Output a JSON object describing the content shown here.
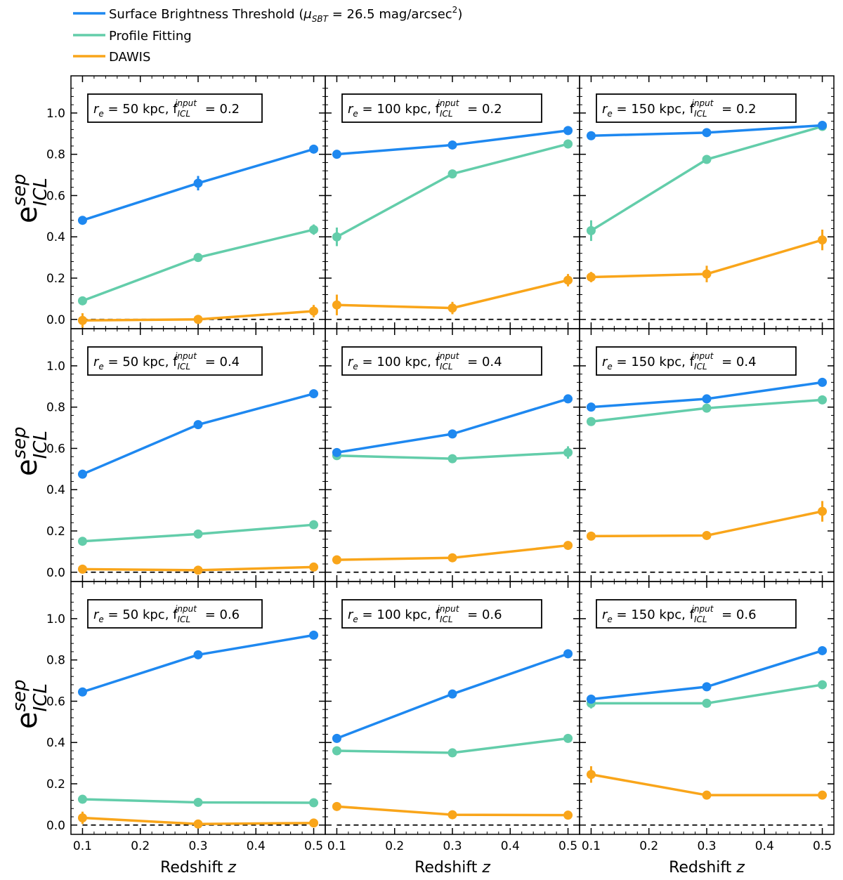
{
  "legend": [
    {
      "label_prefix": "Surface Brightness Threshold (",
      "label_mu": "μ",
      "label_sub": "SBT",
      "label_mid": " = 26.5 mag/arcsec",
      "label_sup": "2",
      "label_suffix": ")",
      "color": "#1e88f0"
    },
    {
      "label": "Profile Fitting",
      "color": "#63cdaa"
    },
    {
      "label": "DAWIS",
      "color": "#f9a51a"
    }
  ],
  "axes": {
    "xlabel": "Redshift z",
    "xlabel_text": "Redshift ",
    "xlabel_var": "z",
    "ylabel_main": "e",
    "ylabel_sup": "sep",
    "ylabel_sub": "ICL",
    "xlim": [
      0.08,
      0.52
    ],
    "ylim": [
      -0.045,
      1.18
    ],
    "xticks": [
      0.1,
      0.2,
      0.3,
      0.4,
      0.5
    ],
    "xtick_labels": [
      "0.1",
      "0.2",
      "0.3",
      "0.4",
      "0.5"
    ],
    "yticks": [
      0.0,
      0.2,
      0.4,
      0.6,
      0.8,
      1.0
    ],
    "ytick_labels": [
      "0.0",
      "0.2",
      "0.4",
      "0.6",
      "0.8",
      "1.0"
    ],
    "reference_line": 0.0
  },
  "chart_data": {
    "type": "line",
    "x": [
      0.1,
      0.3,
      0.5
    ],
    "series_names": [
      "Surface Brightness Threshold",
      "Profile Fitting",
      "DAWIS"
    ],
    "panels": [
      {
        "re_label": "r",
        "re_sub": "e",
        "re_text": " = 50 kpc, f",
        "f_sup": "input",
        "f_sub": "ICL",
        "f_val": " = 0.2",
        "re": 50,
        "f_input": 0.2,
        "series": [
          {
            "name": "Surface Brightness Threshold",
            "y": [
              0.48,
              0.66,
              0.825
            ],
            "err": [
              0.02,
              0.035,
              0.012
            ]
          },
          {
            "name": "Profile Fitting",
            "y": [
              0.09,
              0.3,
              0.435
            ],
            "err": [
              0.012,
              0.012,
              0.025
            ]
          },
          {
            "name": "DAWIS",
            "y": [
              -0.005,
              0.0,
              0.04
            ],
            "err": [
              0.035,
              0.012,
              0.03
            ]
          }
        ]
      },
      {
        "re_label": "r",
        "re_sub": "e",
        "re_text": " = 100 kpc, f",
        "f_sup": "input",
        "f_sub": "ICL",
        "f_val": " = 0.2",
        "re": 100,
        "f_input": 0.2,
        "series": [
          {
            "name": "Surface Brightness Threshold",
            "y": [
              0.8,
              0.845,
              0.915
            ],
            "err": [
              0.012,
              0.012,
              0.012
            ]
          },
          {
            "name": "Profile Fitting",
            "y": [
              0.4,
              0.705,
              0.85
            ],
            "err": [
              0.045,
              0.012,
              0.012
            ]
          },
          {
            "name": "DAWIS",
            "y": [
              0.07,
              0.055,
              0.19
            ],
            "err": [
              0.05,
              0.03,
              0.03
            ]
          }
        ]
      },
      {
        "re_label": "r",
        "re_sub": "e",
        "re_text": " = 150 kpc, f",
        "f_sup": "input",
        "f_sub": "ICL",
        "f_val": " = 0.2",
        "re": 150,
        "f_input": 0.2,
        "series": [
          {
            "name": "Surface Brightness Threshold",
            "y": [
              0.89,
              0.905,
              0.94
            ],
            "err": [
              0.012,
              0.012,
              0.012
            ]
          },
          {
            "name": "Profile Fitting",
            "y": [
              0.43,
              0.775,
              0.935
            ],
            "err": [
              0.05,
              0.012,
              0.012
            ]
          },
          {
            "name": "DAWIS",
            "y": [
              0.205,
              0.22,
              0.385
            ],
            "err": [
              0.025,
              0.04,
              0.05
            ]
          }
        ]
      },
      {
        "re_label": "r",
        "re_sub": "e",
        "re_text": " = 50 kpc, f",
        "f_sup": "input",
        "f_sub": "ICL",
        "f_val": " = 0.4",
        "re": 50,
        "f_input": 0.4,
        "series": [
          {
            "name": "Surface Brightness Threshold",
            "y": [
              0.475,
              0.715,
              0.865
            ],
            "err": [
              0.012,
              0.015,
              0.012
            ]
          },
          {
            "name": "Profile Fitting",
            "y": [
              0.15,
              0.185,
              0.23
            ],
            "err": [
              0.012,
              0.012,
              0.012
            ]
          },
          {
            "name": "DAWIS",
            "y": [
              0.015,
              0.01,
              0.025
            ],
            "err": [
              0.012,
              0.012,
              0.012
            ]
          }
        ]
      },
      {
        "re_label": "r",
        "re_sub": "e",
        "re_text": " = 100 kpc, f",
        "f_sup": "input",
        "f_sub": "ICL",
        "f_val": " = 0.4",
        "re": 100,
        "f_input": 0.4,
        "series": [
          {
            "name": "Surface Brightness Threshold",
            "y": [
              0.58,
              0.67,
              0.84
            ],
            "err": [
              0.02,
              0.02,
              0.012
            ]
          },
          {
            "name": "Profile Fitting",
            "y": [
              0.565,
              0.55,
              0.58
            ],
            "err": [
              0.015,
              0.012,
              0.03
            ]
          },
          {
            "name": "DAWIS",
            "y": [
              0.06,
              0.07,
              0.13
            ],
            "err": [
              0.012,
              0.012,
              0.012
            ]
          }
        ]
      },
      {
        "re_label": "r",
        "re_sub": "e",
        "re_text": " = 150 kpc, f",
        "f_sup": "input",
        "f_sub": "ICL",
        "f_val": " = 0.4",
        "re": 150,
        "f_input": 0.4,
        "series": [
          {
            "name": "Surface Brightness Threshold",
            "y": [
              0.8,
              0.84,
              0.92
            ],
            "err": [
              0.012,
              0.012,
              0.012
            ]
          },
          {
            "name": "Profile Fitting",
            "y": [
              0.73,
              0.795,
              0.835
            ],
            "err": [
              0.012,
              0.012,
              0.02
            ]
          },
          {
            "name": "DAWIS",
            "y": [
              0.175,
              0.178,
              0.295
            ],
            "err": [
              0.012,
              0.012,
              0.05
            ]
          }
        ]
      },
      {
        "re_label": "r",
        "re_sub": "e",
        "re_text": " = 50 kpc, f",
        "f_sup": "input",
        "f_sub": "ICL",
        "f_val": " = 0.6",
        "re": 50,
        "f_input": 0.6,
        "series": [
          {
            "name": "Surface Brightness Threshold",
            "y": [
              0.645,
              0.825,
              0.92
            ],
            "err": [
              0.012,
              0.012,
              0.012
            ]
          },
          {
            "name": "Profile Fitting",
            "y": [
              0.125,
              0.11,
              0.108
            ],
            "err": [
              0.012,
              0.012,
              0.012
            ]
          },
          {
            "name": "DAWIS",
            "y": [
              0.035,
              0.005,
              0.01
            ],
            "err": [
              0.03,
              0.012,
              0.012
            ]
          }
        ]
      },
      {
        "re_label": "r",
        "re_sub": "e",
        "re_text": " = 100 kpc, f",
        "f_sup": "input",
        "f_sub": "ICL",
        "f_val": " = 0.6",
        "re": 100,
        "f_input": 0.6,
        "series": [
          {
            "name": "Surface Brightness Threshold",
            "y": [
              0.42,
              0.635,
              0.83
            ],
            "err": [
              0.012,
              0.012,
              0.012
            ]
          },
          {
            "name": "Profile Fitting",
            "y": [
              0.36,
              0.35,
              0.42
            ],
            "err": [
              0.02,
              0.012,
              0.012
            ]
          },
          {
            "name": "DAWIS",
            "y": [
              0.09,
              0.05,
              0.048
            ],
            "err": [
              0.012,
              0.012,
              0.012
            ]
          }
        ]
      },
      {
        "re_label": "r",
        "re_sub": "e",
        "re_text": " = 150 kpc, f",
        "f_sup": "input",
        "f_sub": "ICL",
        "f_val": " = 0.6",
        "re": 150,
        "f_input": 0.6,
        "series": [
          {
            "name": "Surface Brightness Threshold",
            "y": [
              0.61,
              0.67,
              0.845
            ],
            "err": [
              0.02,
              0.012,
              0.012
            ]
          },
          {
            "name": "Profile Fitting",
            "y": [
              0.59,
              0.59,
              0.68
            ],
            "err": [
              0.025,
              0.02,
              0.012
            ]
          },
          {
            "name": "DAWIS",
            "y": [
              0.245,
              0.145,
              0.145
            ],
            "err": [
              0.04,
              0.012,
              0.012
            ]
          }
        ]
      }
    ]
  }
}
